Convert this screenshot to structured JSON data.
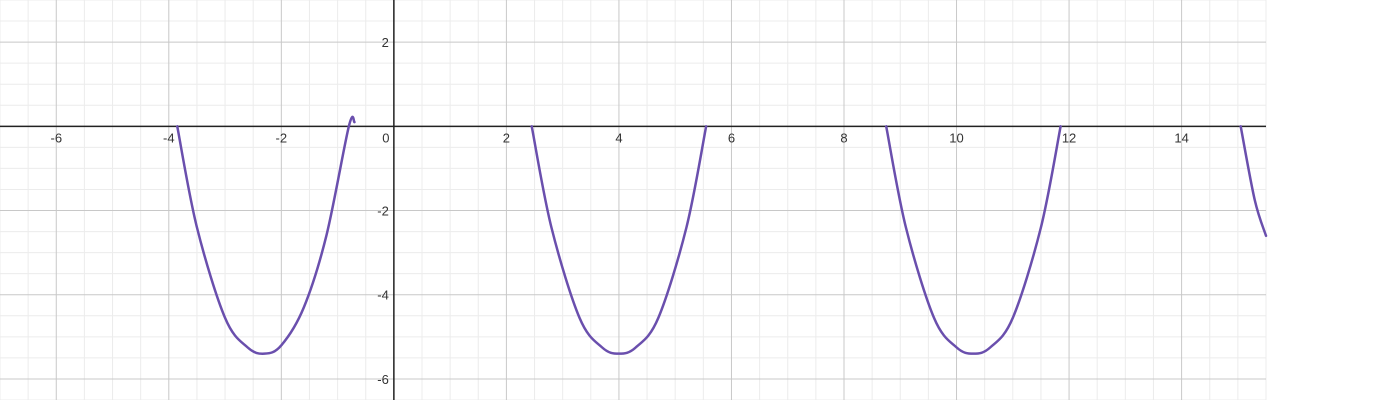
{
  "chart_data": {
    "type": "line",
    "title": "",
    "xlabel": "",
    "ylabel": "",
    "xlim": [
      -7.0,
      15.5
    ],
    "ylim": [
      -6.5,
      3.0
    ],
    "grid": true,
    "minor_grid": true,
    "x_ticks": [
      -6,
      -4,
      -2,
      0,
      2,
      4,
      6,
      8,
      10,
      12,
      14
    ],
    "y_ticks": [
      2,
      -2,
      -4,
      -6
    ],
    "x_tick_labels": [
      "-6",
      "-4",
      "-2",
      "0",
      "2",
      "4",
      "6",
      "8",
      "10",
      "12",
      "14"
    ],
    "y_tick_labels": [
      "2",
      "-2",
      "-4",
      "-6"
    ],
    "series": [
      {
        "color": "#6a4fad",
        "x": [
          -3.85,
          -3.5,
          -3.0,
          -2.6,
          -2.3,
          -2.0,
          -1.6,
          -1.2,
          -0.8,
          -0.7
        ],
        "y": [
          0.0,
          -2.4,
          -4.55,
          -5.25,
          -5.4,
          -5.2,
          -4.3,
          -2.6,
          0.0,
          0.1
        ]
      },
      {
        "color": "#6a4fad",
        "x": [
          2.45,
          2.8,
          3.3,
          3.7,
          4.0,
          4.3,
          4.7,
          5.2,
          5.55
        ],
        "y": [
          0.0,
          -2.4,
          -4.55,
          -5.25,
          -5.4,
          -5.25,
          -4.55,
          -2.4,
          0.0
        ]
      },
      {
        "color": "#6a4fad",
        "x": [
          8.75,
          9.1,
          9.6,
          10.0,
          10.3,
          10.6,
          11.0,
          11.5,
          11.85
        ],
        "y": [
          0.0,
          -2.4,
          -4.55,
          -5.25,
          -5.4,
          -5.25,
          -4.55,
          -2.4,
          0.0
        ]
      },
      {
        "color": "#6a4fad",
        "x": [
          15.05,
          15.3,
          15.5
        ],
        "y": [
          0.0,
          -1.75,
          -2.6
        ]
      }
    ]
  }
}
